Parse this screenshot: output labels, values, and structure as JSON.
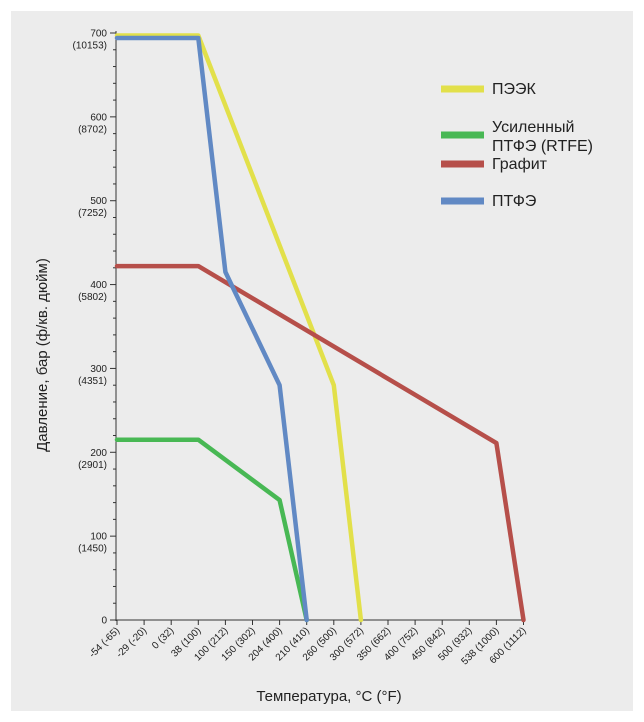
{
  "chart_data": {
    "type": "line",
    "xlabel": "Температура, °C (°F)",
    "ylabel": "Давление, бар (ф/кв. дюйм)",
    "x_categories": [
      "-54 (-65)",
      "-29 (-20)",
      "0 (32)",
      "38 (100)",
      "100 (212)",
      "150 (302)",
      "204 (400)",
      "210 (410)",
      "260 (500)",
      "300 (572)",
      "350 (662)",
      "400 (752)",
      "450 (842)",
      "500 (932)",
      "538 (1000)",
      "600 (1112)"
    ],
    "y_ticks": [
      {
        "value": 0,
        "bar": "0",
        "psi": ""
      },
      {
        "value": 100,
        "bar": "100",
        "psi": "(1450)"
      },
      {
        "value": 200,
        "bar": "200",
        "psi": "(2901)"
      },
      {
        "value": 300,
        "bar": "300",
        "psi": "(4351)"
      },
      {
        "value": 400,
        "bar": "400",
        "psi": "(5802)"
      },
      {
        "value": 500,
        "bar": "500",
        "psi": "(7252)"
      },
      {
        "value": 600,
        "bar": "600",
        "psi": "(8702)"
      },
      {
        "value": 700,
        "bar": "700",
        "psi": "(10153)"
      }
    ],
    "ylim": [
      0,
      700
    ],
    "grid": false,
    "legend_position": "top-right",
    "series": [
      {
        "name": "ПЭЭК",
        "color": "#e2e04a",
        "points": [
          [
            "-54 (-65)",
            697
          ],
          [
            "38 (100)",
            697
          ],
          [
            "260 (500)",
            280
          ],
          [
            "300 (572)",
            0
          ]
        ]
      },
      {
        "name": "Усиленный ПТФЭ (RTFE)",
        "color": "#48b854",
        "points": [
          [
            "-54 (-65)",
            215
          ],
          [
            "38 (100)",
            215
          ],
          [
            "204 (400)",
            143
          ],
          [
            "210 (410)",
            0
          ]
        ]
      },
      {
        "name": "Графит",
        "color": "#b64f4a",
        "points": [
          [
            "-54 (-65)",
            422
          ],
          [
            "38 (100)",
            422
          ],
          [
            "538 (1000)",
            211
          ],
          [
            "600 (1112)",
            0
          ]
        ]
      },
      {
        "name": "ПТФЭ",
        "color": "#6189c4",
        "points": [
          [
            "-54 (-65)",
            694
          ],
          [
            "38 (100)",
            694
          ],
          [
            "100 (212)",
            415
          ],
          [
            "204 (400)",
            280
          ],
          [
            "210 (410)",
            0
          ]
        ]
      }
    ],
    "legend": [
      {
        "lines": [
          "ПЭЭК"
        ],
        "color": "#e2e04a"
      },
      {
        "lines": [
          "Усиленный",
          "ПТФЭ (RTFE)"
        ],
        "color": "#48b854"
      },
      {
        "lines": [
          "Графит"
        ],
        "color": "#b64f4a"
      },
      {
        "lines": [
          "ПТФЭ"
        ],
        "color": "#6189c4"
      }
    ]
  }
}
